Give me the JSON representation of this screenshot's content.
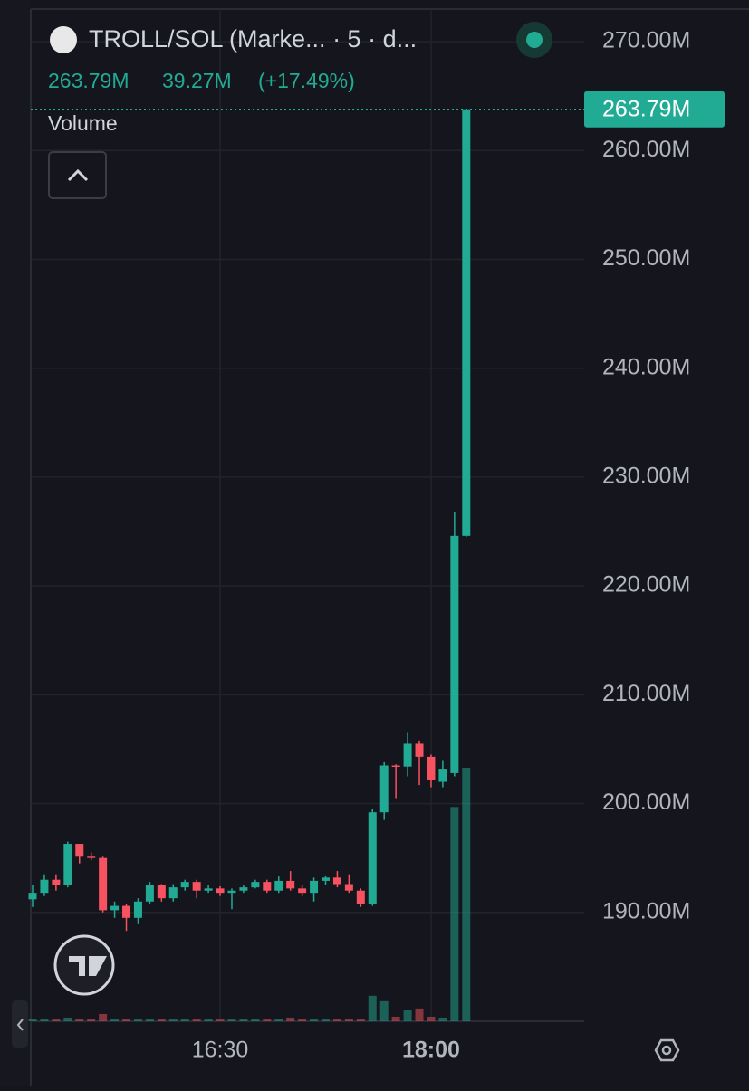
{
  "header": {
    "symbol": "TROLL/SOL (Marke... · 5 · d...",
    "price": "263.79M",
    "change": "39.27M",
    "change_pct": "(+17.49%)",
    "pane_label": "Volume"
  },
  "chart_data": {
    "type": "candlestick",
    "categories": [
      null,
      null,
      null,
      null,
      null,
      null,
      null,
      null,
      null,
      null,
      null,
      null,
      null,
      null,
      null,
      null,
      "16:30",
      null,
      null,
      null,
      null,
      null,
      null,
      null,
      null,
      null,
      null,
      null,
      null,
      null,
      null,
      null,
      null,
      null,
      "18:00",
      null,
      null,
      null
    ],
    "open": [
      191.2,
      191.8,
      193.0,
      192.5,
      196.3,
      195.2,
      195.0,
      190.2,
      190.6,
      189.5,
      191.0,
      192.5,
      191.3,
      192.3,
      192.8,
      192.0,
      192.2,
      191.8,
      192.0,
      192.3,
      192.8,
      192.0,
      192.9,
      192.2,
      191.8,
      192.9,
      193.2,
      192.6,
      192.0,
      190.8,
      199.2,
      203.5,
      203.4,
      205.5,
      204.3,
      202.0,
      202.8,
      224.6
    ],
    "high": [
      192.5,
      193.5,
      193.5,
      196.5,
      196.3,
      195.5,
      195.2,
      191.0,
      190.8,
      191.3,
      192.8,
      192.6,
      192.6,
      193.0,
      193.0,
      192.5,
      192.4,
      192.2,
      192.5,
      193.0,
      193.0,
      193.3,
      193.8,
      192.5,
      193.2,
      193.4,
      193.8,
      193.5,
      192.2,
      199.5,
      203.8,
      203.6,
      206.5,
      205.8,
      204.5,
      204.0,
      226.8,
      263.79
    ],
    "low": [
      190.5,
      191.5,
      192.0,
      192.3,
      194.5,
      194.8,
      190.0,
      189.5,
      188.3,
      189.0,
      190.8,
      191.0,
      191.0,
      192.0,
      191.3,
      191.8,
      191.5,
      190.3,
      191.8,
      192.2,
      191.8,
      191.8,
      192.0,
      191.5,
      191.0,
      192.5,
      192.3,
      191.8,
      190.5,
      190.6,
      198.5,
      200.5,
      202.5,
      201.7,
      201.5,
      201.5,
      202.5,
      224.5
    ],
    "close": [
      191.8,
      193.0,
      192.5,
      196.3,
      195.2,
      195.0,
      190.2,
      190.6,
      189.5,
      191.0,
      192.5,
      191.3,
      192.3,
      192.8,
      192.0,
      192.2,
      191.8,
      192.0,
      192.3,
      192.8,
      192.0,
      192.9,
      192.2,
      191.8,
      192.9,
      193.2,
      192.6,
      192.0,
      190.8,
      199.2,
      203.5,
      203.4,
      205.5,
      204.3,
      202.2,
      203.2,
      224.6,
      263.79
    ],
    "volume": [
      2,
      3,
      2,
      4,
      3,
      2,
      8,
      2,
      3,
      2,
      3,
      2,
      2,
      3,
      2,
      2,
      2,
      2,
      2,
      3,
      2,
      3,
      4,
      2,
      3,
      3,
      2,
      3,
      2,
      28,
      22,
      5,
      12,
      14,
      5,
      4,
      235,
      278
    ],
    "up_color": "#22ab94",
    "down_color": "#f7525f",
    "ylim": [
      180,
      273
    ],
    "yticks": [
      {
        "value": 190,
        "label": "190.00M"
      },
      {
        "value": 200,
        "label": "200.00M"
      },
      {
        "value": 210,
        "label": "210.00M"
      },
      {
        "value": 220,
        "label": "220.00M"
      },
      {
        "value": 230,
        "label": "230.00M"
      },
      {
        "value": 240,
        "label": "240.00M"
      },
      {
        "value": 250,
        "label": "250.00M"
      },
      {
        "value": 260,
        "label": "260.00M"
      },
      {
        "value": 270,
        "label": "270.00M"
      }
    ],
    "last_price": {
      "value": 263.79,
      "label": "263.79M"
    },
    "grid": true
  }
}
